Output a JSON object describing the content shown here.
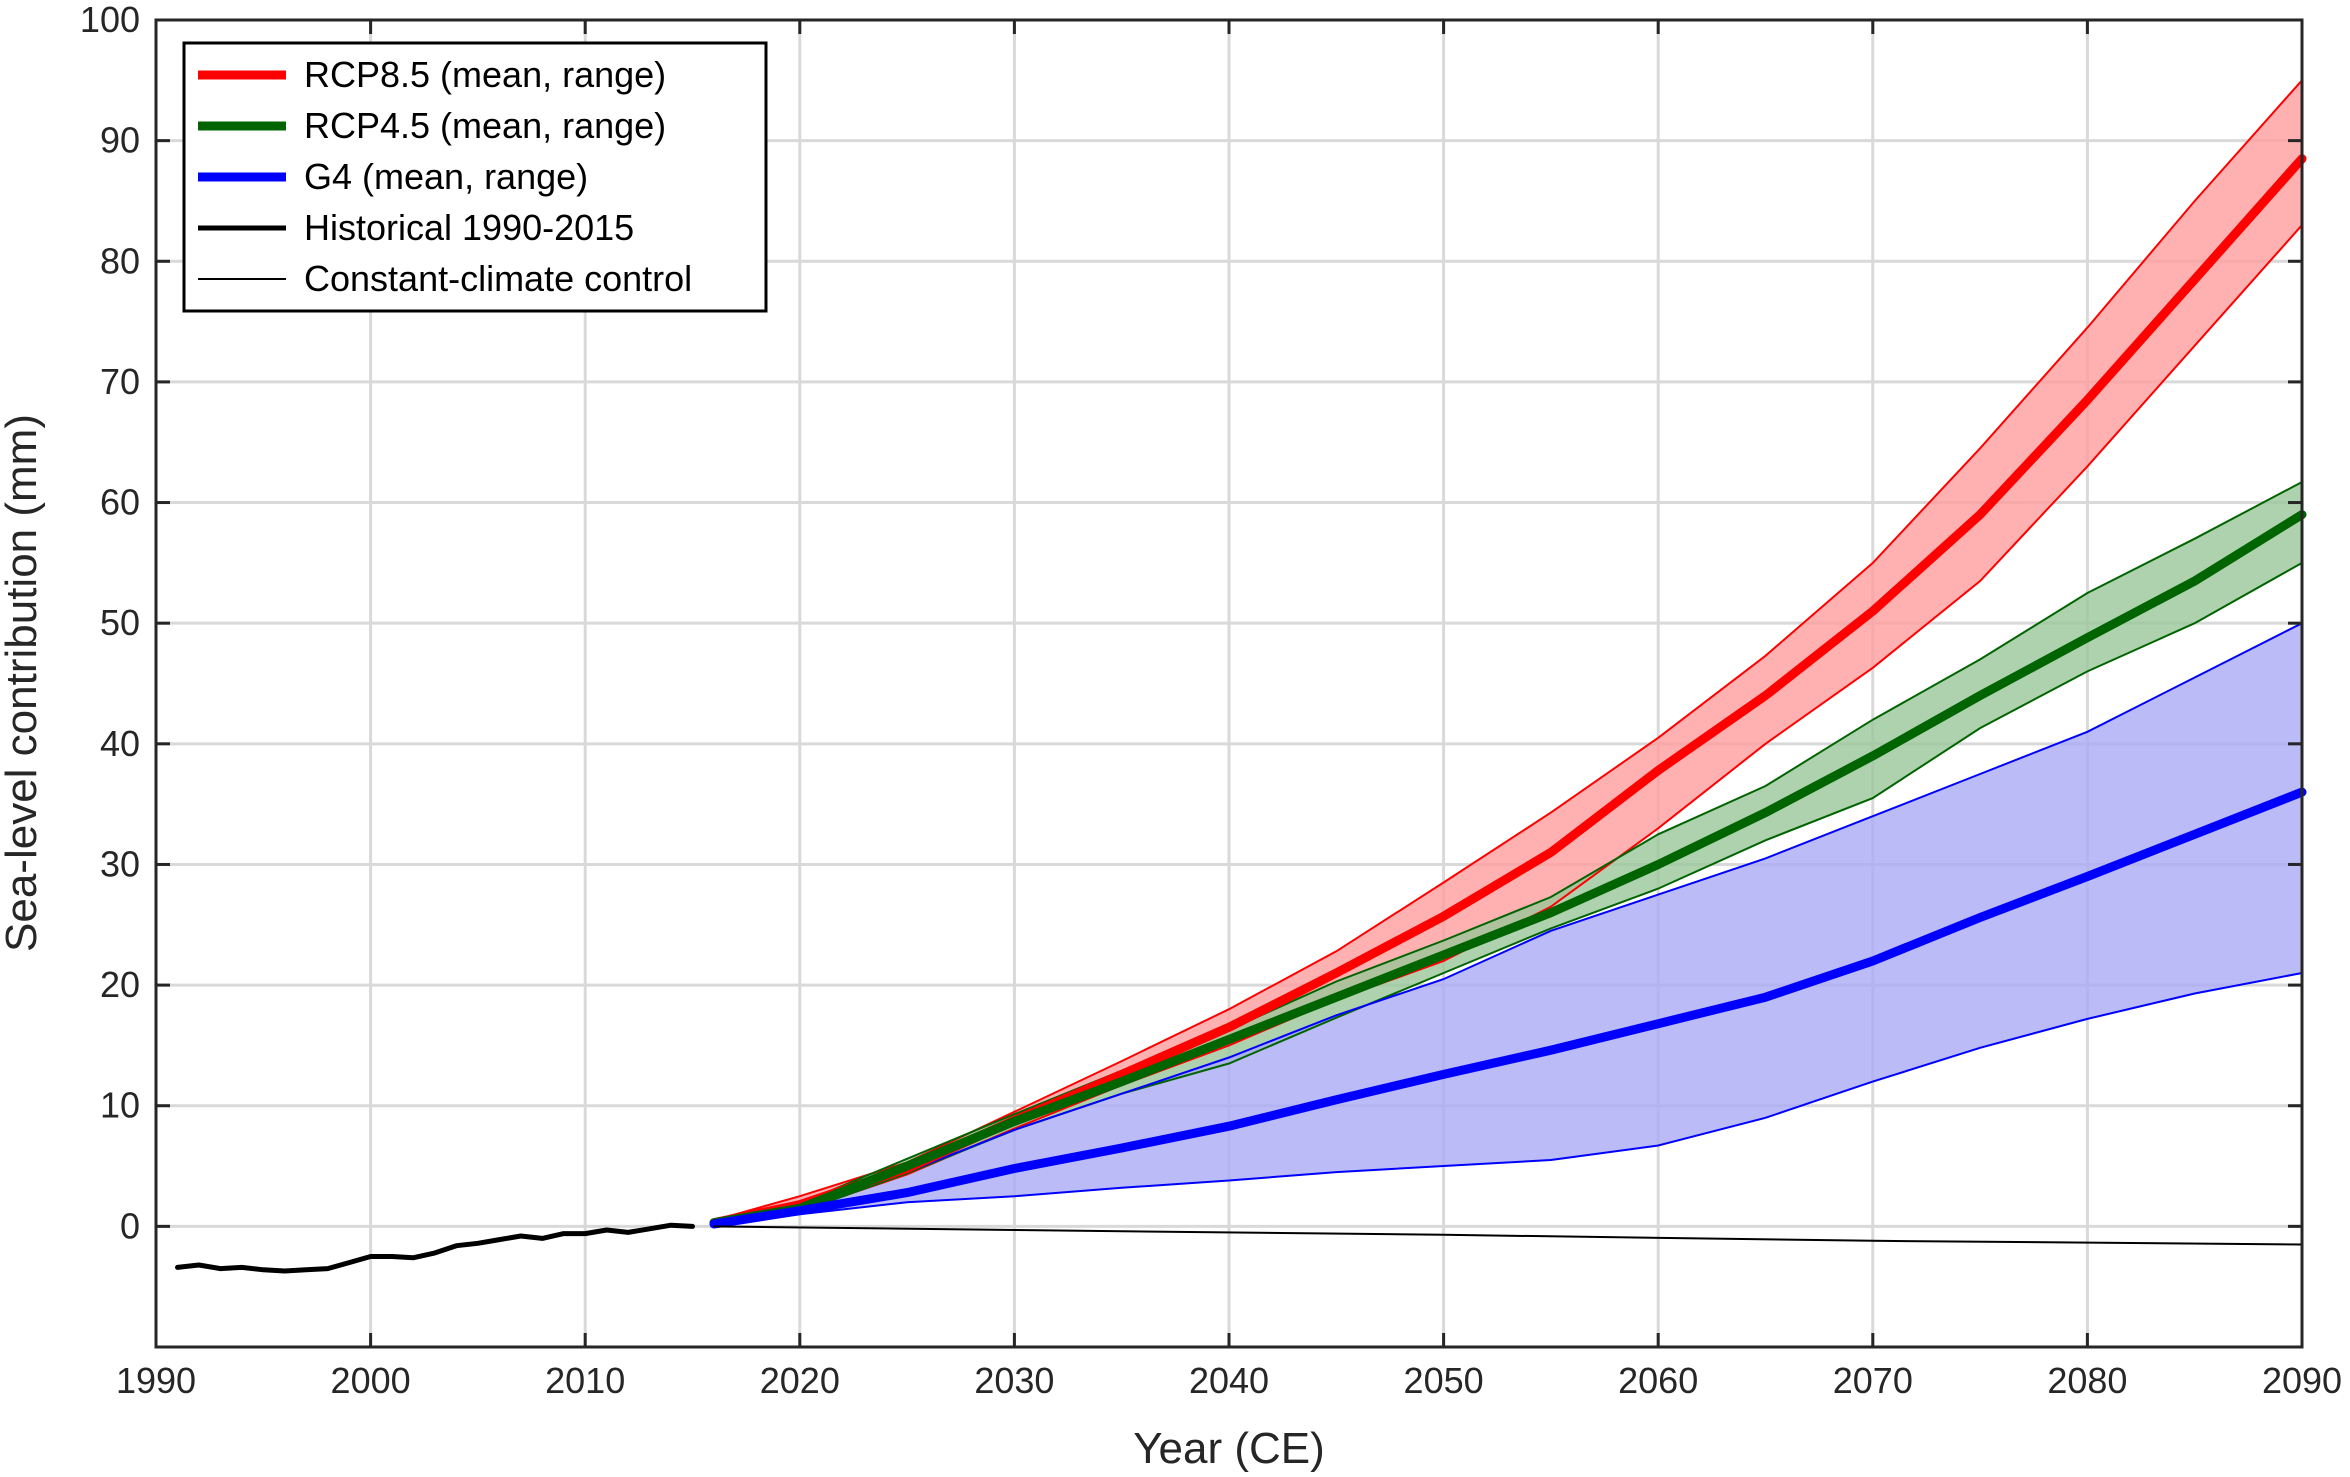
{
  "chart_data": {
    "type": "line",
    "title": "",
    "xlabel": "Year (CE)",
    "ylabel": "Sea-level contribution (mm)",
    "xlim": [
      1990,
      2090
    ],
    "ylim": [
      -10,
      100
    ],
    "xticks": [
      1990,
      2000,
      2010,
      2020,
      2030,
      2040,
      2050,
      2060,
      2070,
      2080,
      2090
    ],
    "yticks": [
      0,
      10,
      20,
      30,
      40,
      50,
      60,
      70,
      80,
      90,
      100
    ],
    "xtick_labels": [
      "1990",
      "2000",
      "2010",
      "2020",
      "2030",
      "2040",
      "2050",
      "2060",
      "2070",
      "2080",
      "2090"
    ],
    "ytick_labels": [
      "0",
      "10",
      "20",
      "30",
      "40",
      "50",
      "60",
      "70",
      "80",
      "90",
      "100"
    ],
    "grid": true,
    "legend_position": "top-left",
    "series": [
      {
        "name": "RCP8.5 (mean, range)",
        "color": "#ff0000",
        "fill": "#ff9e9e",
        "style": "thick",
        "x": [
          2016,
          2020,
          2025,
          2030,
          2035,
          2040,
          2045,
          2050,
          2055,
          2060,
          2065,
          2070,
          2075,
          2080,
          2085,
          2090
        ],
        "mean": [
          0.3,
          1.8,
          4.8,
          8.8,
          12.6,
          16.5,
          21.0,
          25.7,
          31.0,
          37.8,
          44.0,
          51.0,
          59.0,
          68.5,
          78.5,
          88.5
        ],
        "upper": [
          0.5,
          2.5,
          5.3,
          9.5,
          13.7,
          18.0,
          22.8,
          28.5,
          34.3,
          40.5,
          47.3,
          55.0,
          64.5,
          74.5,
          85.0,
          95.0
        ],
        "lower": [
          0.2,
          1.3,
          4.3,
          8.1,
          11.7,
          15.0,
          18.8,
          22.0,
          26.5,
          33.0,
          40.0,
          46.3,
          53.5,
          63.0,
          73.0,
          83.0
        ]
      },
      {
        "name": "RCP4.5 (mean, range)",
        "color": "#006400",
        "fill": "#9ac79a",
        "style": "thick",
        "x": [
          2016,
          2020,
          2025,
          2030,
          2035,
          2040,
          2045,
          2050,
          2055,
          2060,
          2065,
          2070,
          2075,
          2080,
          2085,
          2090
        ],
        "mean": [
          0.3,
          1.5,
          5.0,
          8.7,
          12.0,
          15.5,
          19.0,
          22.5,
          26.0,
          30.0,
          34.3,
          39.0,
          44.0,
          48.8,
          53.5,
          59.0
        ],
        "upper": [
          0.4,
          1.9,
          5.6,
          9.3,
          12.9,
          16.3,
          20.3,
          23.7,
          27.3,
          32.5,
          36.5,
          42.0,
          47.0,
          52.5,
          57.0,
          61.7
        ],
        "lower": [
          0.2,
          1.2,
          4.4,
          8.0,
          11.0,
          13.5,
          17.3,
          21.0,
          24.7,
          28.0,
          32.0,
          35.5,
          41.3,
          46.0,
          50.0,
          55.0
        ]
      },
      {
        "name": "G4 (mean, range)",
        "color": "#0000ff",
        "fill": "#aaaaf5",
        "style": "thick",
        "x": [
          2016,
          2020,
          2025,
          2030,
          2035,
          2040,
          2045,
          2050,
          2055,
          2060,
          2065,
          2070,
          2075,
          2080,
          2085,
          2090
        ],
        "mean": [
          0.2,
          1.3,
          2.8,
          4.8,
          6.5,
          8.3,
          10.5,
          12.6,
          14.6,
          16.8,
          19.0,
          22.0,
          25.6,
          29.0,
          32.5,
          36.0
        ],
        "upper": [
          0.4,
          1.8,
          4.5,
          8.0,
          11.0,
          14.0,
          17.5,
          20.5,
          24.5,
          27.5,
          30.5,
          34.0,
          37.5,
          41.0,
          45.5,
          50.0
        ],
        "lower": [
          0.1,
          1.0,
          2.0,
          2.5,
          3.2,
          3.8,
          4.5,
          5.0,
          5.5,
          6.7,
          9.0,
          12.0,
          14.8,
          17.2,
          19.3,
          21.0
        ]
      },
      {
        "name": "Historical 1990-2015",
        "color": "#000000",
        "style": "medium",
        "x": [
          1991,
          1992,
          1993,
          1994,
          1995,
          1996,
          1997,
          1998,
          1999,
          2000,
          2001,
          2002,
          2003,
          2004,
          2005,
          2006,
          2007,
          2008,
          2009,
          2010,
          2011,
          2012,
          2013,
          2014,
          2015
        ],
        "y": [
          -3.4,
          -3.2,
          -3.5,
          -3.4,
          -3.6,
          -3.7,
          -3.6,
          -3.5,
          -3.0,
          -2.5,
          -2.5,
          -2.6,
          -2.2,
          -1.6,
          -1.4,
          -1.1,
          -0.8,
          -1.0,
          -0.6,
          -0.6,
          -0.3,
          -0.5,
          -0.2,
          0.1,
          0.0
        ]
      },
      {
        "name": "Constant-climate control",
        "color": "#000000",
        "style": "thin",
        "x": [
          2016,
          2030,
          2050,
          2070,
          2090
        ],
        "y": [
          0.0,
          -0.3,
          -0.7,
          -1.2,
          -1.5
        ]
      }
    ]
  }
}
